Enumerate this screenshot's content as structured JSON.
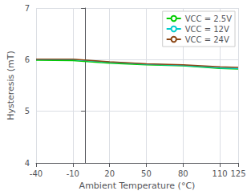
{
  "chart_data": {
    "type": "line",
    "xlabel": "Ambient Temperature (°C)",
    "ylabel": "Hysteresis (mT)",
    "x": [
      -40,
      -10,
      20,
      50,
      80,
      110,
      125
    ],
    "series": [
      {
        "name": "VCC = 2.5V",
        "color": "#00cc00",
        "values": [
          5.99,
          5.98,
          5.93,
          5.9,
          5.88,
          5.83,
          5.82
        ]
      },
      {
        "name": "VCC = 12V",
        "color": "#00cccc",
        "values": [
          6.0,
          6.0,
          5.95,
          5.91,
          5.89,
          5.84,
          5.83
        ]
      },
      {
        "name": "VCC = 24V",
        "color": "#8B4513",
        "values": [
          6.01,
          6.01,
          5.96,
          5.92,
          5.9,
          5.86,
          5.85
        ]
      }
    ],
    "xlim": [
      -40,
      125
    ],
    "ylim": [
      4,
      7
    ],
    "xticks": [
      -40,
      -10,
      20,
      50,
      80,
      110,
      125
    ],
    "yticks": [
      4,
      5,
      6,
      7
    ],
    "grid": true,
    "legend": "upper right"
  }
}
